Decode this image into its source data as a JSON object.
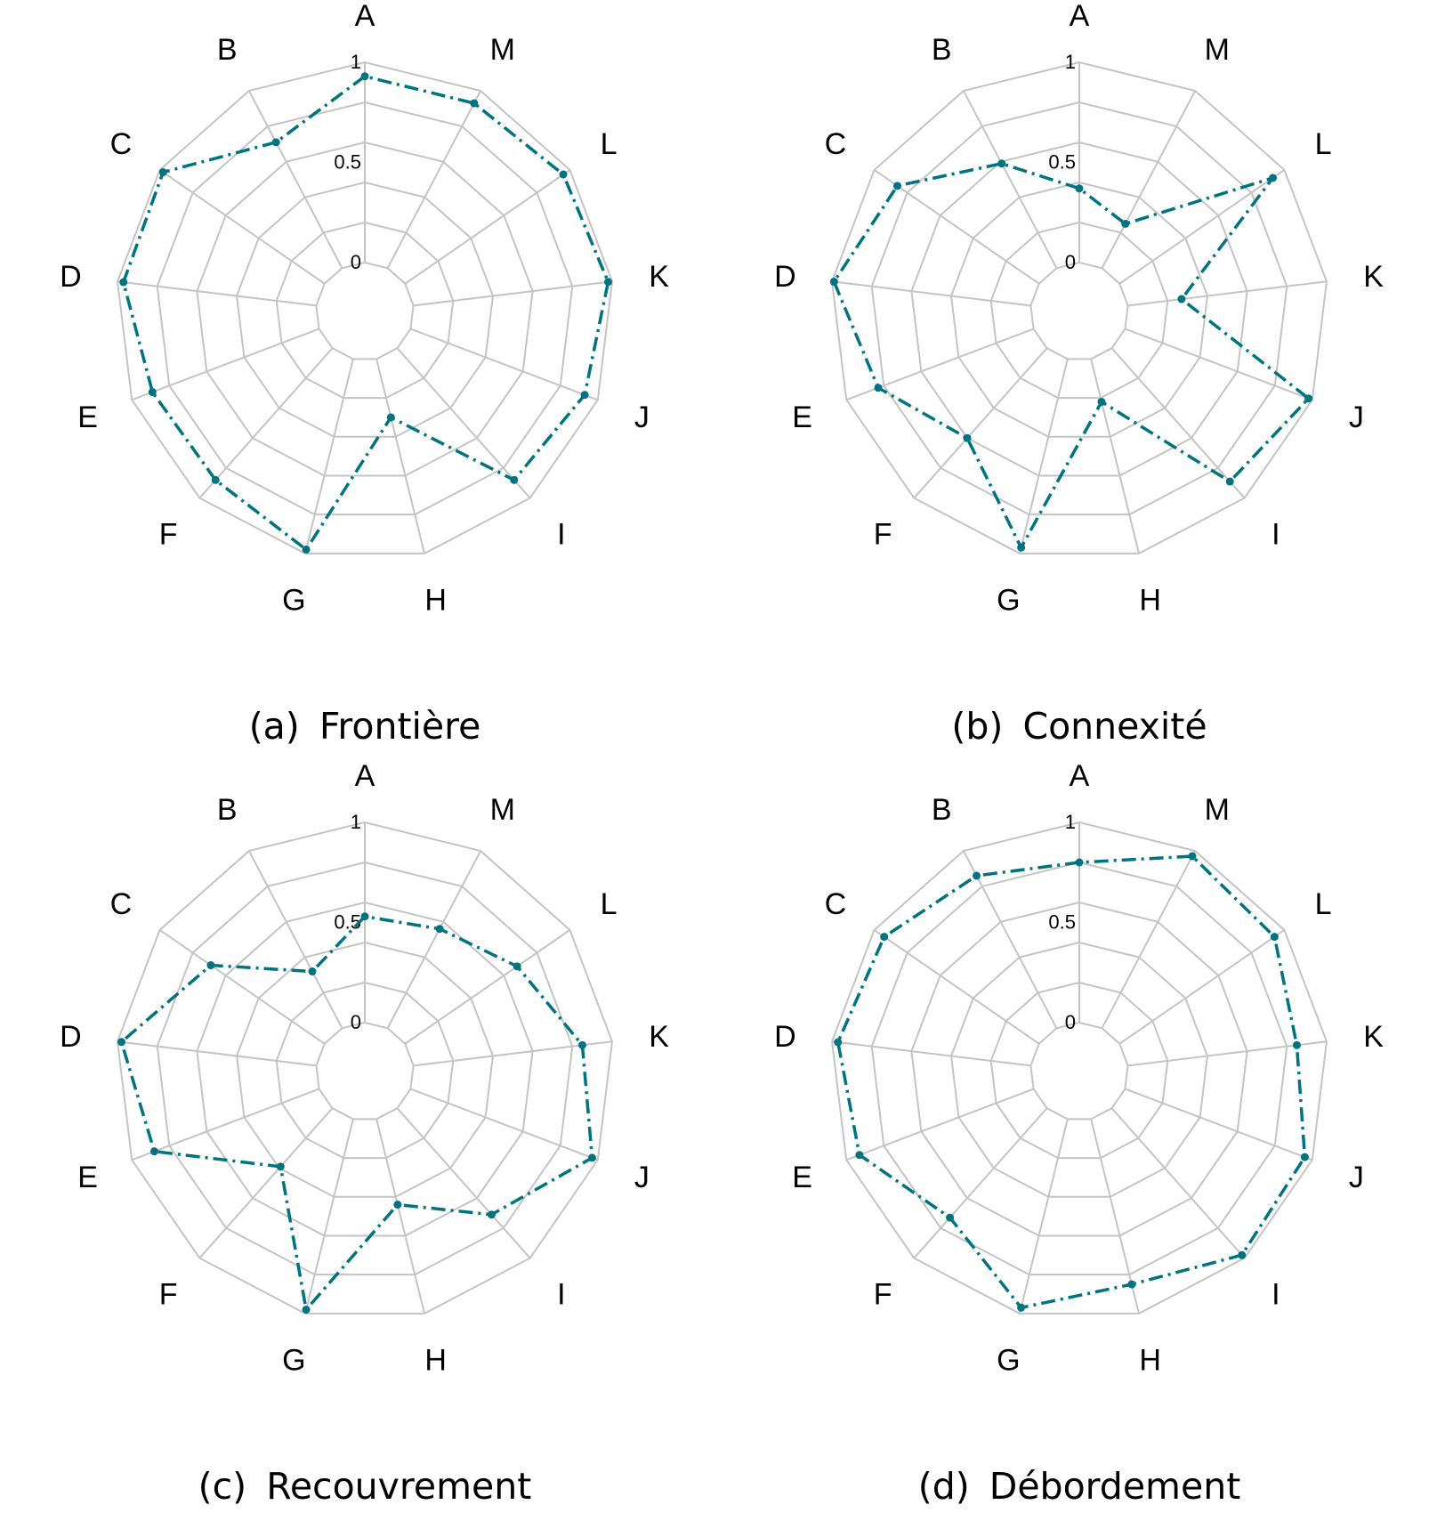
{
  "chart_data": [
    {
      "type": "radar",
      "caption_tag": "(a)",
      "caption_text": "Frontière",
      "categories": [
        "A",
        "B",
        "C",
        "D",
        "E",
        "F",
        "G",
        "H",
        "I",
        "J",
        "K",
        "L",
        "M"
      ],
      "values": [
        0.93,
        0.71,
        0.98,
        0.97,
        0.89,
        0.88,
        0.98,
        0.3,
        0.88,
        0.93,
        0.98,
        0.96,
        0.93
      ],
      "rlim": [
        0,
        1
      ],
      "r_ticks": [
        "0",
        "0.5",
        "1"
      ],
      "color": "#007380",
      "line_style": "dash-dot",
      "grid": true
    },
    {
      "type": "radar",
      "caption_tag": "(b)",
      "caption_text": "Connexité",
      "categories": [
        "A",
        "B",
        "C",
        "D",
        "E",
        "F",
        "G",
        "H",
        "I",
        "J",
        "K",
        "L",
        "M"
      ],
      "values": [
        0.37,
        0.59,
        0.86,
        0.99,
        0.83,
        0.6,
        0.97,
        0.22,
        0.89,
        0.98,
        0.27,
        0.93,
        0.25
      ],
      "rlim": [
        0,
        1
      ],
      "r_ticks": [
        "0",
        "0.5",
        "1"
      ],
      "color": "#007380",
      "line_style": "dash-dot",
      "grid": true
    },
    {
      "type": "radar",
      "caption_tag": "(c)",
      "caption_text": "Recouvrement",
      "categories": [
        "A",
        "B",
        "C",
        "D",
        "E",
        "F",
        "G",
        "H",
        "I",
        "J",
        "K",
        "L",
        "M"
      ],
      "values": [
        0.53,
        0.32,
        0.69,
        0.98,
        0.88,
        0.39,
        0.98,
        0.44,
        0.71,
        0.97,
        0.85,
        0.68,
        0.56
      ],
      "rlim": [
        0,
        1
      ],
      "r_ticks": [
        "0",
        "0.5",
        "1"
      ],
      "color": "#007380",
      "line_style": "dash-dot",
      "grid": true
    },
    {
      "type": "radar",
      "caption_tag": "(d)",
      "caption_text": "Débordement",
      "categories": [
        "A",
        "B",
        "C",
        "D",
        "E",
        "F",
        "G",
        "H",
        "I",
        "J",
        "K",
        "L",
        "M"
      ],
      "values": [
        0.8,
        0.86,
        0.94,
        0.97,
        0.93,
        0.73,
        0.97,
        0.85,
        0.98,
        0.96,
        0.85,
        0.94,
        0.97
      ],
      "rlim": [
        0,
        1
      ],
      "r_ticks": [
        "0",
        "0.5",
        "1"
      ],
      "color": "#007380",
      "line_style": "dash-dot",
      "grid": true
    }
  ]
}
